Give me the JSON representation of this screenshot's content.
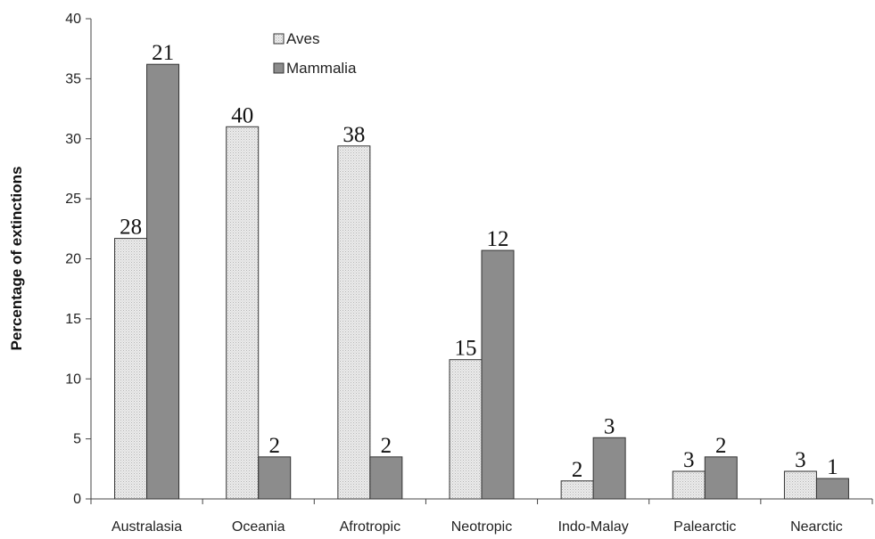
{
  "chart_data": {
    "type": "bar",
    "ylabel": "Percentage of extinctions",
    "ylim": [
      0,
      40
    ],
    "yticks": [
      0,
      5,
      10,
      15,
      20,
      25,
      30,
      35,
      40
    ],
    "categories": [
      "Australasia",
      "Oceania",
      "Afrotropic",
      "Neotropic",
      "Indo-Malay",
      "Palearctic",
      "Nearctic"
    ],
    "series": [
      {
        "name": "Aves",
        "values": [
          21.7,
          31.0,
          29.4,
          11.6,
          1.5,
          2.3,
          2.3
        ],
        "labels": [
          "28",
          "40",
          "38",
          "15",
          "2",
          "3",
          "3"
        ],
        "color": "#e6e6e6"
      },
      {
        "name": "Mammalia",
        "values": [
          36.2,
          3.5,
          3.5,
          20.7,
          5.1,
          3.5,
          1.7
        ],
        "labels": [
          "21",
          "2",
          "2",
          "12",
          "3",
          "2",
          "1"
        ],
        "color": "#8c8c8c"
      }
    ],
    "legend": {
      "position": "top-center"
    },
    "grid": false
  }
}
